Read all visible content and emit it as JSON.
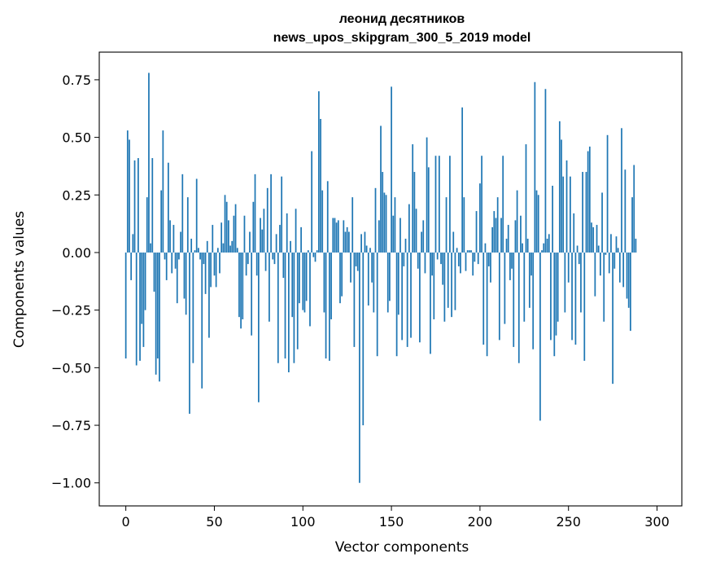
{
  "chart_data": {
    "type": "bar",
    "title": "леонид десятников",
    "subtitle": "news_upos_skipgram_300_5_2019 model",
    "xlabel": "Vector components",
    "ylabel": "Components values",
    "xlim": [
      -15,
      314
    ],
    "ylim": [
      -1.1,
      0.87
    ],
    "xticks": [
      0,
      50,
      100,
      150,
      200,
      250,
      300
    ],
    "yticks": [
      -1.0,
      -0.75,
      -0.5,
      -0.25,
      0.0,
      0.25,
      0.5,
      0.75
    ],
    "ytick_labels": [
      "−1.00",
      "−0.75",
      "−0.50",
      "−0.25",
      "0.00",
      "0.25",
      "0.50",
      "0.75"
    ],
    "bar_color": "#1f77b4",
    "grid": false,
    "values": [
      -0.46,
      0.53,
      0.49,
      -0.12,
      0.08,
      0.4,
      -0.49,
      0.41,
      -0.47,
      -0.31,
      -0.41,
      -0.25,
      0.24,
      0.78,
      0.04,
      0.41,
      -0.17,
      -0.53,
      -0.46,
      -0.56,
      0.27,
      0.53,
      -0.03,
      -0.12,
      0.39,
      0.14,
      -0.09,
      0.12,
      -0.07,
      -0.22,
      -0.03,
      0.09,
      0.34,
      -0.2,
      -0.27,
      0.24,
      -0.7,
      0.06,
      -0.48,
      0.01,
      0.32,
      0.02,
      -0.03,
      -0.59,
      -0.05,
      -0.18,
      0.05,
      -0.37,
      -0.15,
      0.12,
      -0.1,
      -0.15,
      0.02,
      -0.09,
      0.13,
      0.04,
      0.25,
      0.22,
      0.14,
      0.03,
      0.05,
      0.16,
      0.21,
      0.02,
      -0.28,
      -0.33,
      -0.29,
      0.16,
      -0.1,
      -0.05,
      0.09,
      -0.36,
      0.22,
      0.34,
      -0.1,
      -0.65,
      0.15,
      0.1,
      0.19,
      -0.08,
      0.28,
      -0.3,
      0.34,
      -0.03,
      -0.05,
      0.08,
      -0.48,
      0.12,
      0.33,
      -0.11,
      -0.46,
      0.17,
      -0.52,
      0.05,
      -0.28,
      -0.48,
      0.19,
      -0.42,
      -0.22,
      0.11,
      -0.25,
      -0.26,
      -0.21,
      0.01,
      -0.32,
      0.44,
      -0.02,
      -0.04,
      0.01,
      0.7,
      0.58,
      0.27,
      -0.26,
      -0.46,
      0.31,
      -0.47,
      -0.29,
      0.15,
      0.15,
      0.13,
      0.14,
      -0.22,
      -0.19,
      0.14,
      0.09,
      0.11,
      0.09,
      -0.13,
      0.24,
      -0.41,
      -0.06,
      -0.08,
      -1.0,
      0.08,
      -0.75,
      0.09,
      0.03,
      -0.23,
      0.02,
      -0.13,
      -0.26,
      0.28,
      -0.45,
      0.14,
      0.55,
      0.35,
      0.26,
      0.25,
      -0.26,
      -0.21,
      0.72,
      0.16,
      0.24,
      -0.45,
      -0.27,
      0.15,
      -0.38,
      -0.06,
      0.06,
      -0.41,
      0.21,
      -0.37,
      0.47,
      0.35,
      0.19,
      -0.07,
      -0.39,
      0.09,
      0.14,
      -0.09,
      0.5,
      0.37,
      -0.44,
      -0.1,
      -0.29,
      0.42,
      -0.03,
      0.42,
      -0.05,
      -0.14,
      -0.3,
      0.24,
      -0.24,
      0.42,
      -0.28,
      0.09,
      -0.25,
      0.02,
      -0.06,
      -0.09,
      0.63,
      0.24,
      -0.08,
      0.01,
      0.01,
      0.01,
      -0.1,
      -0.04,
      0.18,
      -0.05,
      0.3,
      0.42,
      -0.4,
      0.04,
      -0.45,
      -0.06,
      -0.13,
      0.11,
      0.18,
      0.15,
      0.24,
      -0.38,
      0.15,
      0.42,
      -0.31,
      0.06,
      0.12,
      -0.12,
      -0.07,
      -0.41,
      0.14,
      0.27,
      -0.48,
      0.16,
      0.04,
      -0.3,
      0.47,
      0.06,
      -0.24,
      -0.1,
      -0.42,
      0.74,
      0.27,
      0.25,
      -0.73,
      0.01,
      0.04,
      0.71,
      0.06,
      0.08,
      -0.38,
      0.29,
      -0.45,
      -0.36,
      -0.3,
      0.57,
      0.49,
      0.33,
      -0.26,
      0.4,
      -0.13,
      0.33,
      -0.38,
      0.17,
      -0.4,
      0.03,
      -0.05,
      -0.26,
      0.35,
      -0.47,
      0.35,
      0.44,
      0.46,
      0.13,
      0.11,
      -0.19,
      0.12,
      0.03,
      -0.1,
      0.26,
      -0.3,
      -0.01,
      0.51,
      -0.09,
      0.08,
      -0.57,
      -0.07,
      0.07,
      0.02,
      -0.13,
      0.54,
      -0.15,
      0.36,
      -0.2,
      -0.24,
      -0.34,
      0.24,
      0.38,
      0.06
    ]
  }
}
